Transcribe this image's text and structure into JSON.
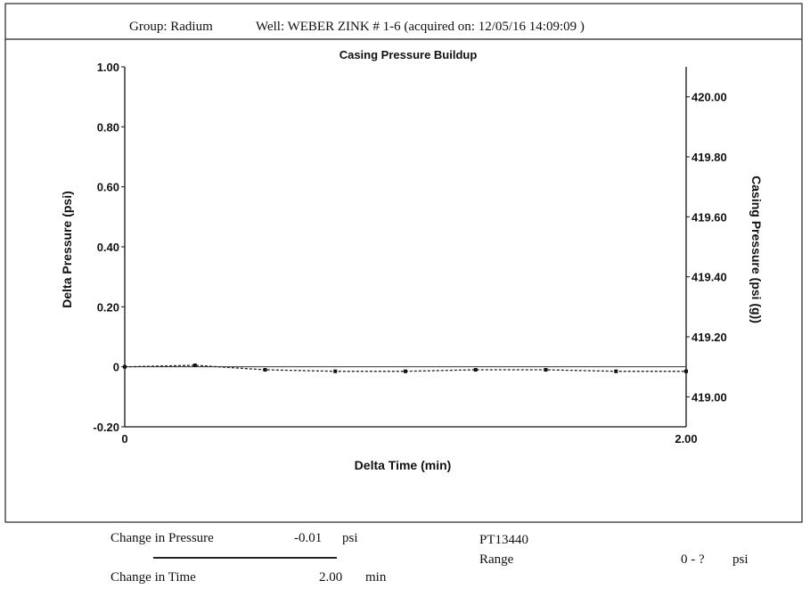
{
  "header": {
    "group_label": "Group: Radium",
    "well_label": "Well: WEBER ZINK # 1-6 (acquired on: 12/05/16 14:09:09 )"
  },
  "chart_data": {
    "type": "line",
    "title": "Casing Pressure Buildup",
    "xlabel": "Delta Time (min)",
    "ylabel": "Delta Pressure (psi)",
    "y2label": "Casing Pressure (psi (g))",
    "xlim": [
      0,
      2.0
    ],
    "ylim": [
      -0.2,
      1.0
    ],
    "y2lim": [
      418.9,
      420.1
    ],
    "x_ticks": [
      "0",
      "2.00"
    ],
    "y_ticks": [
      {
        "value": 1.0,
        "label": "1.00"
      },
      {
        "value": 0.8,
        "label": "0.80"
      },
      {
        "value": 0.6,
        "label": "0.60"
      },
      {
        "value": 0.4,
        "label": "0.40"
      },
      {
        "value": 0.2,
        "label": "0.20"
      },
      {
        "value": 0.0,
        "label": "0"
      },
      {
        "value": -0.2,
        "label": "-0.20"
      }
    ],
    "y2_ticks": [
      {
        "value": 420.0,
        "label": "420.00"
      },
      {
        "value": 419.8,
        "label": "419.80"
      },
      {
        "value": 419.6,
        "label": "419.60"
      },
      {
        "value": 419.4,
        "label": "419.40"
      },
      {
        "value": 419.2,
        "label": "419.20"
      },
      {
        "value": 419.0,
        "label": "419.00"
      }
    ],
    "grid": false,
    "series": [
      {
        "x": [
          0.0,
          0.25,
          0.5,
          0.75,
          1.0,
          1.25,
          1.5,
          1.75,
          2.0
        ],
        "values": [
          0.0,
          0.005,
          -0.01,
          -0.015,
          -0.015,
          -0.01,
          -0.01,
          -0.015,
          -0.015
        ]
      }
    ]
  },
  "footer": {
    "change_pressure_label": "Change in Pressure",
    "change_pressure_value": "-0.01",
    "change_pressure_unit": "psi",
    "change_time_label": "Change in Time",
    "change_time_value": "2.00",
    "change_time_unit": "min",
    "sensor_id": "PT13440",
    "range_label": "Range",
    "range_value": "0 - ?",
    "range_unit": "psi"
  }
}
